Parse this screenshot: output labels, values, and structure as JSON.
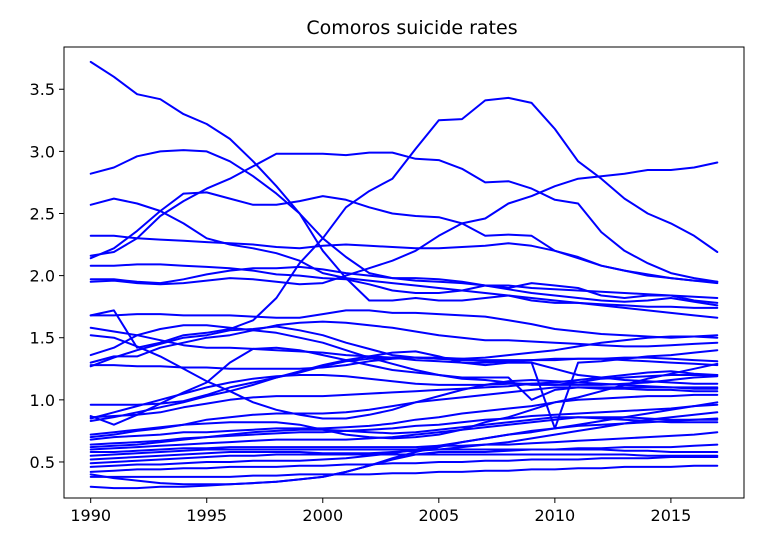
{
  "chart_data": {
    "type": "line",
    "title": "Comoros suicide rates",
    "xlabel": "",
    "ylabel": "",
    "xlim": [
      1988.85,
      2018.15
    ],
    "ylim": [
      0.21,
      3.84
    ],
    "xticks": [
      1990,
      1995,
      2000,
      2005,
      2010,
      2015
    ],
    "yticks": [
      0.5,
      1.0,
      1.5,
      2.0,
      2.5,
      3.0,
      3.5
    ],
    "grid": false,
    "line_color": "#0000ff",
    "x": [
      1990,
      1991,
      1992,
      1993,
      1994,
      1995,
      1996,
      1997,
      1998,
      1999,
      2000,
      2001,
      2002,
      2003,
      2004,
      2005,
      2006,
      2007,
      2008,
      2009,
      2010,
      2011,
      2012,
      2013,
      2014,
      2015,
      2016,
      2017
    ],
    "series": [
      {
        "values": [
          3.72,
          3.6,
          3.46,
          3.42,
          3.3,
          3.22,
          3.1,
          2.92,
          2.72,
          2.5,
          2.2,
          1.98,
          1.8,
          1.8,
          1.82,
          1.8,
          1.8,
          1.82,
          1.84,
          1.8,
          1.78,
          1.78,
          1.77,
          1.76,
          1.75,
          1.75,
          1.74,
          1.74
        ]
      },
      {
        "values": [
          2.82,
          2.87,
          2.96,
          3.0,
          3.01,
          3.0,
          2.92,
          2.8,
          2.66,
          2.5,
          2.3,
          2.15,
          2.02,
          1.98,
          1.96,
          1.95,
          1.94,
          1.92,
          1.92,
          1.9,
          1.89,
          1.88,
          1.87,
          1.86,
          1.85,
          1.84,
          1.83,
          1.82
        ]
      },
      {
        "values": [
          2.57,
          2.62,
          2.58,
          2.52,
          2.42,
          2.3,
          2.25,
          2.22,
          2.18,
          2.12,
          2.02,
          1.98,
          1.96,
          1.94,
          1.92,
          1.9,
          1.88,
          1.86,
          1.84,
          1.82,
          1.8,
          1.78,
          1.76,
          1.74,
          1.72,
          1.7,
          1.68,
          1.66
        ]
      },
      {
        "values": [
          2.32,
          2.32,
          2.3,
          2.29,
          2.28,
          2.27,
          2.26,
          2.25,
          2.23,
          2.22,
          2.24,
          2.25,
          2.24,
          2.23,
          2.22,
          2.22,
          2.23,
          2.24,
          2.26,
          2.24,
          2.2,
          2.14,
          2.08,
          2.04,
          2.01,
          1.98,
          1.96,
          1.95
        ]
      },
      {
        "values": [
          2.16,
          2.19,
          2.3,
          2.48,
          2.6,
          2.7,
          2.78,
          2.88,
          2.98,
          2.98,
          2.98,
          2.97,
          2.99,
          2.99,
          2.94,
          2.93,
          2.86,
          2.75,
          2.76,
          2.7,
          2.61,
          2.58,
          2.35,
          2.2,
          2.1,
          2.02,
          1.98,
          1.95
        ]
      },
      {
        "values": [
          2.14,
          2.22,
          2.36,
          2.52,
          2.66,
          2.67,
          2.62,
          2.57,
          2.57,
          2.6,
          2.64,
          2.61,
          2.55,
          2.5,
          2.48,
          2.47,
          2.42,
          2.32,
          2.33,
          2.32,
          2.2,
          2.15,
          2.08,
          2.04,
          2.0,
          1.98,
          1.96,
          1.94
        ]
      },
      {
        "values": [
          2.08,
          2.08,
          2.09,
          2.09,
          2.08,
          2.07,
          2.06,
          2.04,
          2.01,
          2.0,
          1.98,
          1.97,
          1.93,
          1.88,
          1.86,
          1.86,
          1.88,
          1.92,
          1.9,
          1.94,
          1.92,
          1.9,
          1.84,
          1.82,
          1.84,
          1.84,
          1.8,
          1.78
        ]
      },
      {
        "values": [
          1.97,
          1.97,
          1.95,
          1.94,
          1.97,
          2.01,
          2.04,
          2.06,
          2.06,
          2.07,
          2.05,
          2.02,
          2.0,
          1.98,
          1.98,
          1.97,
          1.95,
          1.92,
          1.89,
          1.86,
          1.84,
          1.82,
          1.8,
          1.79,
          1.8,
          1.82,
          1.79,
          1.76
        ]
      },
      {
        "values": [
          1.95,
          1.96,
          1.94,
          1.93,
          1.94,
          1.96,
          1.98,
          1.97,
          1.95,
          1.93,
          1.94,
          2.0,
          2.06,
          2.12,
          2.2,
          2.32,
          2.42,
          2.46,
          2.58,
          2.64,
          2.72,
          2.78,
          2.8,
          2.82,
          2.85,
          2.85,
          2.87,
          2.91
        ]
      },
      {
        "values": [
          1.68,
          1.72,
          1.42,
          1.46,
          1.52,
          1.54,
          1.57,
          1.64,
          1.82,
          2.1,
          2.3,
          2.55,
          2.68,
          2.78,
          3.02,
          3.25,
          3.26,
          3.41,
          3.43,
          3.39,
          3.18,
          2.92,
          2.78,
          2.62,
          2.5,
          2.42,
          2.32,
          2.19
        ]
      },
      {
        "values": [
          1.68,
          1.68,
          1.69,
          1.69,
          1.68,
          1.68,
          1.68,
          1.67,
          1.66,
          1.66,
          1.69,
          1.72,
          1.72,
          1.7,
          1.7,
          1.69,
          1.68,
          1.67,
          1.64,
          1.61,
          1.57,
          1.55,
          1.53,
          1.52,
          1.51,
          1.5,
          1.51,
          1.52
        ]
      },
      {
        "values": [
          1.58,
          1.55,
          1.52,
          1.48,
          1.44,
          1.42,
          1.42,
          1.41,
          1.4,
          1.39,
          1.38,
          1.36,
          1.35,
          1.34,
          1.34,
          1.33,
          1.32,
          1.32,
          1.32,
          1.32,
          1.32,
          1.33,
          1.33,
          1.34,
          1.34,
          1.33,
          1.32,
          1.31
        ]
      },
      {
        "values": [
          1.52,
          1.5,
          1.43,
          1.35,
          1.25,
          1.15,
          1.07,
          0.98,
          0.92,
          0.88,
          0.85,
          0.85,
          0.88,
          0.92,
          0.98,
          1.03,
          1.08,
          1.12,
          1.15,
          1.16,
          1.15,
          1.14,
          1.13,
          1.12,
          1.11,
          1.1,
          1.09,
          1.09
        ]
      },
      {
        "values": [
          1.36,
          1.42,
          1.52,
          1.57,
          1.6,
          1.6,
          1.58,
          1.56,
          1.54,
          1.5,
          1.46,
          1.4,
          1.34,
          1.29,
          1.24,
          1.2,
          1.17,
          1.16,
          1.14,
          1.12,
          1.12,
          1.14,
          1.17,
          1.18,
          1.19,
          1.2,
          1.2,
          1.2
        ]
      },
      {
        "values": [
          1.3,
          1.35,
          1.35,
          1.42,
          1.46,
          1.5,
          1.52,
          1.56,
          1.6,
          1.62,
          1.63,
          1.62,
          1.6,
          1.58,
          1.55,
          1.52,
          1.5,
          1.48,
          1.48,
          1.47,
          1.46,
          1.45,
          1.44,
          1.43,
          1.43,
          1.44,
          1.45,
          1.46
        ]
      },
      {
        "values": [
          1.27,
          1.34,
          1.4,
          1.45,
          1.5,
          1.52,
          1.56,
          1.57,
          1.59,
          1.56,
          1.52,
          1.46,
          1.41,
          1.36,
          1.34,
          1.33,
          1.33,
          1.34,
          1.36,
          1.38,
          1.4,
          1.43,
          1.46,
          1.48,
          1.5,
          1.51,
          1.51,
          1.5
        ]
      },
      {
        "values": [
          1.28,
          1.28,
          1.27,
          1.27,
          1.26,
          1.26,
          1.25,
          1.25,
          1.25,
          1.25,
          1.26,
          1.28,
          1.31,
          1.33,
          1.34,
          1.34,
          1.33,
          1.31,
          1.3,
          1.3,
          0.77,
          1.3,
          1.31,
          1.33,
          1.35,
          1.36,
          1.38,
          1.4
        ]
      },
      {
        "values": [
          0.96,
          0.96,
          0.96,
          0.97,
          0.99,
          1.04,
          1.1,
          1.14,
          1.18,
          1.22,
          1.27,
          1.31,
          1.33,
          1.34,
          1.32,
          1.31,
          1.3,
          1.3,
          1.31,
          1.32,
          1.33,
          1.33,
          1.33,
          1.32,
          1.31,
          1.3,
          1.29,
          1.28
        ]
      },
      {
        "values": [
          0.87,
          0.8,
          0.88,
          0.97,
          1.06,
          1.14,
          1.3,
          1.41,
          1.42,
          1.4,
          1.36,
          1.32,
          1.28,
          1.24,
          1.22,
          1.2,
          1.18,
          1.18,
          1.18,
          1.0,
          1.08,
          1.1,
          1.1,
          1.1,
          1.1,
          1.1,
          1.1,
          1.1
        ]
      },
      {
        "values": [
          0.85,
          0.9,
          0.95,
          1.0,
          1.05,
          1.1,
          1.14,
          1.17,
          1.19,
          1.2,
          1.2,
          1.19,
          1.17,
          1.15,
          1.13,
          1.12,
          1.12,
          1.12,
          1.13,
          1.13,
          1.12,
          1.12,
          1.12,
          1.13,
          1.14,
          1.16,
          1.18,
          1.19
        ]
      },
      {
        "values": [
          0.83,
          0.86,
          0.9,
          0.94,
          0.98,
          1.03,
          1.07,
          1.12,
          1.18,
          1.23,
          1.28,
          1.32,
          1.35,
          1.38,
          1.39,
          1.35,
          1.3,
          1.28,
          1.3,
          1.3,
          1.25,
          1.2,
          1.18,
          1.16,
          1.15,
          1.14,
          1.13,
          1.13
        ]
      },
      {
        "values": [
          0.86,
          0.87,
          0.88,
          0.9,
          0.94,
          0.97,
          1.0,
          1.02,
          1.03,
          1.03,
          1.03,
          1.04,
          1.05,
          1.06,
          1.07,
          1.08,
          1.09,
          1.1,
          1.11,
          1.13,
          1.14,
          1.16,
          1.18,
          1.2,
          1.22,
          1.23,
          1.21,
          1.2
        ]
      },
      {
        "values": [
          0.72,
          0.74,
          0.76,
          0.78,
          0.8,
          0.84,
          0.86,
          0.88,
          0.89,
          0.89,
          0.89,
          0.9,
          0.92,
          0.95,
          0.98,
          1.0,
          1.02,
          1.04,
          1.06,
          1.08,
          1.1,
          1.1,
          1.09,
          1.09,
          1.08,
          1.08,
          1.07,
          1.07
        ]
      },
      {
        "values": [
          0.7,
          0.72,
          0.75,
          0.77,
          0.8,
          0.81,
          0.82,
          0.82,
          0.82,
          0.8,
          0.76,
          0.72,
          0.7,
          0.69,
          0.7,
          0.72,
          0.76,
          0.82,
          0.86,
          0.92,
          0.98,
          1.02,
          1.07,
          1.12,
          1.17,
          1.21,
          1.25,
          1.29
        ]
      },
      {
        "values": [
          0.68,
          0.7,
          0.71,
          0.72,
          0.74,
          0.74,
          0.75,
          0.76,
          0.77,
          0.77,
          0.77,
          0.78,
          0.79,
          0.81,
          0.84,
          0.86,
          0.89,
          0.91,
          0.93,
          0.95,
          0.98,
          1.0,
          1.01,
          1.02,
          1.03,
          1.03,
          1.04,
          1.04
        ]
      },
      {
        "values": [
          0.64,
          0.65,
          0.66,
          0.67,
          0.69,
          0.7,
          0.71,
          0.72,
          0.73,
          0.74,
          0.74,
          0.75,
          0.76,
          0.77,
          0.79,
          0.8,
          0.82,
          0.84,
          0.85,
          0.87,
          0.88,
          0.89,
          0.9,
          0.91,
          0.92,
          0.93,
          0.95,
          0.96
        ]
      },
      {
        "values": [
          0.62,
          0.63,
          0.64,
          0.66,
          0.68,
          0.7,
          0.72,
          0.74,
          0.75,
          0.76,
          0.76,
          0.75,
          0.74,
          0.73,
          0.74,
          0.76,
          0.78,
          0.8,
          0.82,
          0.84,
          0.86,
          0.86,
          0.85,
          0.84,
          0.83,
          0.82,
          0.82,
          0.82
        ]
      },
      {
        "values": [
          0.6,
          0.61,
          0.62,
          0.63,
          0.64,
          0.65,
          0.66,
          0.67,
          0.68,
          0.68,
          0.68,
          0.68,
          0.69,
          0.7,
          0.72,
          0.74,
          0.76,
          0.78,
          0.8,
          0.82,
          0.84,
          0.86,
          0.86,
          0.86,
          0.85,
          0.84,
          0.84,
          0.84
        ]
      },
      {
        "values": [
          0.58,
          0.58,
          0.59,
          0.6,
          0.61,
          0.61,
          0.62,
          0.62,
          0.62,
          0.62,
          0.62,
          0.62,
          0.62,
          0.62,
          0.62,
          0.63,
          0.63,
          0.64,
          0.64,
          0.65,
          0.66,
          0.67,
          0.68,
          0.69,
          0.7,
          0.71,
          0.72,
          0.74
        ]
      },
      {
        "values": [
          0.55,
          0.56,
          0.57,
          0.58,
          0.59,
          0.6,
          0.6,
          0.6,
          0.6,
          0.6,
          0.6,
          0.6,
          0.6,
          0.6,
          0.6,
          0.6,
          0.6,
          0.6,
          0.6,
          0.6,
          0.6,
          0.6,
          0.6,
          0.59,
          0.59,
          0.58,
          0.58,
          0.58
        ]
      },
      {
        "values": [
          0.52,
          0.53,
          0.54,
          0.55,
          0.56,
          0.57,
          0.58,
          0.58,
          0.58,
          0.58,
          0.57,
          0.57,
          0.57,
          0.58,
          0.59,
          0.6,
          0.62,
          0.64,
          0.66,
          0.69,
          0.72,
          0.75,
          0.78,
          0.81,
          0.84,
          0.86,
          0.88,
          0.9
        ]
      },
      {
        "values": [
          0.49,
          0.5,
          0.51,
          0.52,
          0.53,
          0.54,
          0.55,
          0.55,
          0.56,
          0.56,
          0.56,
          0.56,
          0.56,
          0.56,
          0.56,
          0.56,
          0.56,
          0.56,
          0.56,
          0.56,
          0.56,
          0.56,
          0.56,
          0.56,
          0.55,
          0.55,
          0.55,
          0.55
        ]
      },
      {
        "values": [
          0.46,
          0.47,
          0.48,
          0.48,
          0.49,
          0.5,
          0.5,
          0.51,
          0.51,
          0.51,
          0.52,
          0.53,
          0.55,
          0.57,
          0.6,
          0.63,
          0.66,
          0.69,
          0.72,
          0.75,
          0.77,
          0.79,
          0.8,
          0.81,
          0.82,
          0.83,
          0.84,
          0.85
        ]
      },
      {
        "values": [
          0.42,
          0.43,
          0.44,
          0.44,
          0.45,
          0.45,
          0.46,
          0.46,
          0.46,
          0.47,
          0.47,
          0.48,
          0.48,
          0.49,
          0.49,
          0.5,
          0.5,
          0.51,
          0.51,
          0.52,
          0.52,
          0.52,
          0.53,
          0.53,
          0.53,
          0.54,
          0.54,
          0.54
        ]
      },
      {
        "values": [
          0.38,
          0.38,
          0.38,
          0.38,
          0.38,
          0.38,
          0.38,
          0.39,
          0.39,
          0.4,
          0.4,
          0.4,
          0.4,
          0.41,
          0.41,
          0.42,
          0.42,
          0.43,
          0.43,
          0.44,
          0.44,
          0.45,
          0.45,
          0.46,
          0.46,
          0.46,
          0.47,
          0.47
        ]
      },
      {
        "values": [
          0.3,
          0.29,
          0.29,
          0.3,
          0.3,
          0.31,
          0.32,
          0.33,
          0.34,
          0.36,
          0.38,
          0.42,
          0.47,
          0.52,
          0.56,
          0.58,
          0.58,
          0.58,
          0.59,
          0.6,
          0.6,
          0.61,
          0.61,
          0.62,
          0.62,
          0.62,
          0.63,
          0.64
        ]
      },
      {
        "values": [
          0.4,
          0.37,
          0.35,
          0.33,
          0.32,
          0.32,
          0.32,
          0.33,
          0.34,
          0.36,
          0.38,
          0.42,
          0.47,
          0.53,
          0.58,
          0.62,
          0.66,
          0.69,
          0.72,
          0.74,
          0.77,
          0.8,
          0.83,
          0.86,
          0.89,
          0.92,
          0.95,
          0.98
        ]
      }
    ]
  }
}
